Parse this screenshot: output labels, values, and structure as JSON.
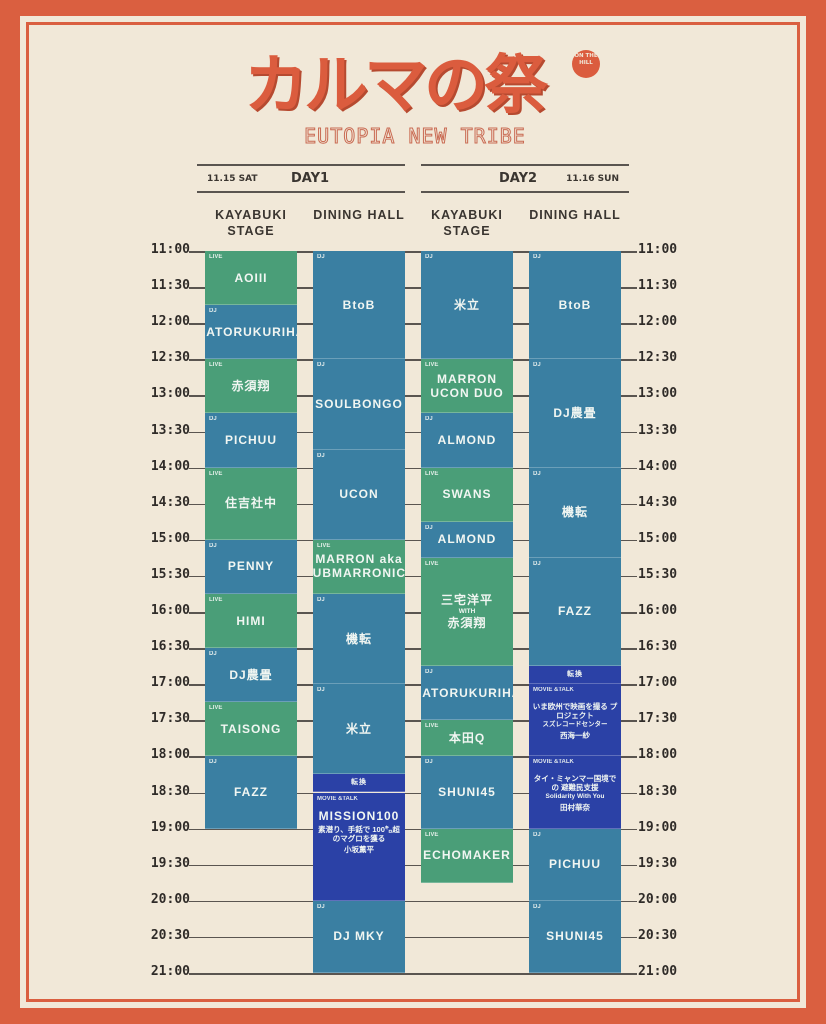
{
  "logo": {
    "title": "カルマの祭",
    "badge": "ON THE HILL",
    "subtitle": "EUTOPIA NEW TRIBE"
  },
  "days": [
    {
      "date": "11.15 SAT",
      "label": "DAY1"
    },
    {
      "date": "11.16 SUN",
      "label": "DAY2"
    }
  ],
  "stages": [
    "KAYABUKI STAGE",
    "DINING HALL",
    "KAYABUKI STAGE",
    "DINING HALL"
  ],
  "times": [
    "11:00",
    "11:30",
    "12:00",
    "12:30",
    "13:00",
    "13:30",
    "14:00",
    "14:30",
    "15:00",
    "15:30",
    "16:00",
    "16:30",
    "17:00",
    "17:30",
    "18:00",
    "18:30",
    "19:00",
    "19:30",
    "20:00",
    "20:30",
    "21:00"
  ],
  "colors": {
    "border": "#da5f40",
    "background": "#f1e8d8",
    "live": "#4a9e78",
    "dj": "#3a7fa2",
    "movie": "#2b41a6"
  },
  "columns": [
    [
      {
        "type": "live",
        "tag": "LIVE",
        "name": "AOIII",
        "start": "11:00",
        "end": "11:45"
      },
      {
        "type": "dj",
        "tag": "DJ",
        "name": "RATORUKURIHA",
        "start": "11:45",
        "end": "12:30"
      },
      {
        "type": "live",
        "tag": "LIVE",
        "name": "赤須翔",
        "start": "12:30",
        "end": "13:15"
      },
      {
        "type": "dj",
        "tag": "DJ",
        "name": "PICHUU",
        "start": "13:15",
        "end": "14:00"
      },
      {
        "type": "live",
        "tag": "LIVE",
        "name": "住吉社中",
        "start": "14:00",
        "end": "15:00"
      },
      {
        "type": "dj",
        "tag": "DJ",
        "name": "PENNY",
        "start": "15:00",
        "end": "15:45"
      },
      {
        "type": "live",
        "tag": "LIVE",
        "name": "HIMI",
        "start": "15:45",
        "end": "16:30"
      },
      {
        "type": "dj",
        "tag": "DJ",
        "name": "DJ農畳",
        "start": "16:30",
        "end": "17:15"
      },
      {
        "type": "live",
        "tag": "LIVE",
        "name": "TAISONG",
        "start": "17:15",
        "end": "18:00"
      },
      {
        "type": "dj",
        "tag": "DJ",
        "name": "FAZZ",
        "start": "18:00",
        "end": "19:00"
      }
    ],
    [
      {
        "type": "dj",
        "tag": "DJ",
        "name": "BtoB",
        "start": "11:00",
        "end": "12:30"
      },
      {
        "type": "dj",
        "tag": "DJ",
        "name": "SOULBONGO",
        "start": "12:30",
        "end": "13:45"
      },
      {
        "type": "dj",
        "tag": "DJ",
        "name": "UCON",
        "start": "13:45",
        "end": "15:00"
      },
      {
        "type": "live",
        "tag": "LIVE",
        "name": "MARRON aka DUBMARRONICS",
        "start": "15:00",
        "end": "15:45"
      },
      {
        "type": "dj",
        "tag": "DJ",
        "name": "機転",
        "start": "15:45",
        "end": "17:00"
      },
      {
        "type": "dj",
        "tag": "DJ",
        "name": "米立",
        "start": "17:00",
        "end": "18:15"
      },
      {
        "type": "change",
        "tag": "",
        "name": "転換",
        "start": "18:15",
        "end": "18:30"
      },
      {
        "type": "movie",
        "tag": "MOVIE &TALK",
        "name": "MISSION100",
        "desc": "素潜り、手銛で 100㌔超のマグロを獲る",
        "person": "小坂薫平",
        "start": "18:30",
        "end": "20:00"
      },
      {
        "type": "dj",
        "tag": "DJ",
        "name": "DJ MKY",
        "start": "20:00",
        "end": "21:00"
      }
    ],
    [
      {
        "type": "dj",
        "tag": "DJ",
        "name": "米立",
        "start": "11:00",
        "end": "12:30"
      },
      {
        "type": "live",
        "tag": "LIVE",
        "name": "MARRON UCON DUO",
        "start": "12:30",
        "end": "13:15"
      },
      {
        "type": "dj",
        "tag": "DJ",
        "name": "ALMOND",
        "start": "13:15",
        "end": "14:00"
      },
      {
        "type": "live",
        "tag": "LIVE",
        "name": "SWANS",
        "start": "14:00",
        "end": "14:45"
      },
      {
        "type": "dj",
        "tag": "DJ",
        "name": "ALMOND",
        "start": "14:45",
        "end": "15:15"
      },
      {
        "type": "live",
        "tag": "LIVE",
        "name": "三宅洋平",
        "with": "WITH",
        "name2": "赤須翔",
        "start": "15:15",
        "end": "16:45"
      },
      {
        "type": "dj",
        "tag": "DJ",
        "name": "RATORUKURIHA",
        "start": "16:45",
        "end": "17:30"
      },
      {
        "type": "live",
        "tag": "LIVE",
        "name": "本田Q",
        "start": "17:30",
        "end": "18:00"
      },
      {
        "type": "dj",
        "tag": "DJ",
        "name": "SHUNI45",
        "start": "18:00",
        "end": "19:00"
      },
      {
        "type": "live",
        "tag": "LIVE",
        "name": "ECHOMAKER",
        "start": "19:00",
        "end": "19:45"
      }
    ],
    [
      {
        "type": "dj",
        "tag": "DJ",
        "name": "BtoB",
        "start": "11:00",
        "end": "12:30"
      },
      {
        "type": "dj",
        "tag": "DJ",
        "name": "DJ農畳",
        "start": "12:30",
        "end": "14:00"
      },
      {
        "type": "dj",
        "tag": "DJ",
        "name": "機転",
        "start": "14:00",
        "end": "15:15"
      },
      {
        "type": "dj",
        "tag": "DJ",
        "name": "FAZZ",
        "start": "15:15",
        "end": "16:45"
      },
      {
        "type": "change",
        "tag": "",
        "name": "転換",
        "start": "16:45",
        "end": "17:00"
      },
      {
        "type": "movie",
        "tag": "MOVIE &TALK",
        "desc": "いま欧州で映画を撮る プロジェクト",
        "sub": "スズレコードセンター",
        "person": "西海一紗",
        "start": "17:00",
        "end": "18:00"
      },
      {
        "type": "movie",
        "tag": "MOVIE &TALK",
        "desc": "タイ・ミャンマー国境での 避難民支援",
        "sub": "Solidarity With You",
        "person": "田村華奈",
        "start": "18:00",
        "end": "19:00"
      },
      {
        "type": "dj",
        "tag": "DJ",
        "name": "PICHUU",
        "start": "19:00",
        "end": "20:00"
      },
      {
        "type": "dj",
        "tag": "DJ",
        "name": "SHUNI45",
        "start": "20:00",
        "end": "21:00"
      }
    ]
  ]
}
